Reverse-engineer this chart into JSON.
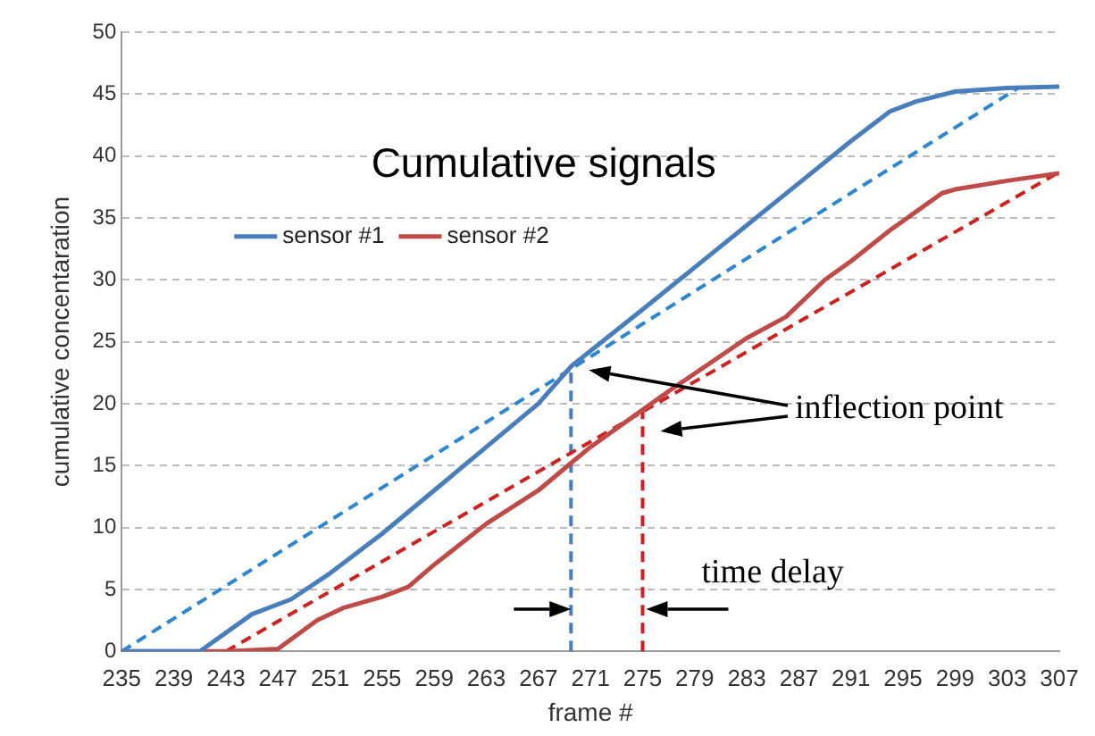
{
  "chart_data": {
    "type": "line",
    "title": "Cumulative signals",
    "xlabel": "frame #",
    "ylabel": "cumulative concentaration",
    "xlim": [
      235,
      307
    ],
    "xticks": [
      235,
      239,
      243,
      247,
      251,
      255,
      259,
      263,
      267,
      271,
      275,
      279,
      283,
      287,
      291,
      295,
      299,
      303,
      307
    ],
    "ylim": [
      0,
      50
    ],
    "yticks": [
      0,
      5,
      10,
      15,
      20,
      25,
      30,
      35,
      40,
      45,
      50
    ],
    "grid": "y",
    "legend": "top left",
    "marker": "none",
    "series": [
      {
        "name": "sensor #1",
        "type": "line",
        "color": "#4a7ebb",
        "line_style": "solid",
        "x": [
          235,
          239,
          241,
          243,
          245,
          248,
          251,
          255,
          259,
          263,
          267,
          269.5,
          275,
          279,
          283,
          287,
          291,
          294,
          296,
          299,
          303,
          307
        ],
        "values": [
          0,
          0,
          0,
          1.5,
          3,
          4.2,
          6.3,
          9.5,
          13,
          16.5,
          20,
          23,
          27.6,
          31,
          34.4,
          37.8,
          41.2,
          43.6,
          44.4,
          45.2,
          45.5,
          45.6
        ]
      },
      {
        "name": "sensor #2",
        "type": "line",
        "color": "#be4b48",
        "line_style": "solid",
        "x": [
          235,
          239,
          243,
          247,
          250,
          252,
          255,
          257,
          259,
          263,
          267,
          269.5,
          271,
          275,
          277,
          283,
          286,
          289,
          291,
          294,
          298,
          299,
          303,
          307
        ],
        "values": [
          0,
          0,
          0,
          0.2,
          2.5,
          3.5,
          4.4,
          5.2,
          7,
          10.3,
          13,
          15.2,
          16.5,
          19.5,
          21,
          25.3,
          27,
          30,
          31.5,
          34,
          37,
          37.3,
          38,
          38.6
        ]
      },
      {
        "type": "line",
        "color": "#2e86d0",
        "line_style": "dashed",
        "x": [
          235,
          304
        ],
        "values": [
          0,
          45.6
        ]
      },
      {
        "type": "line",
        "color": "#cc2222",
        "line_style": "dashed",
        "x": [
          243,
          307
        ],
        "values": [
          0,
          38.7
        ]
      }
    ],
    "ref_lines": [
      {
        "axis": "x",
        "value": 269.5,
        "color": "#4a7ebb",
        "line_style": "dashed"
      },
      {
        "axis": "x",
        "value": 275,
        "color": "#cc2222",
        "line_style": "dashed"
      }
    ],
    "annotations": [
      "inflection point",
      {
        "text": "time delay",
        "x": 275,
        "y": 3.4
      }
    ]
  }
}
